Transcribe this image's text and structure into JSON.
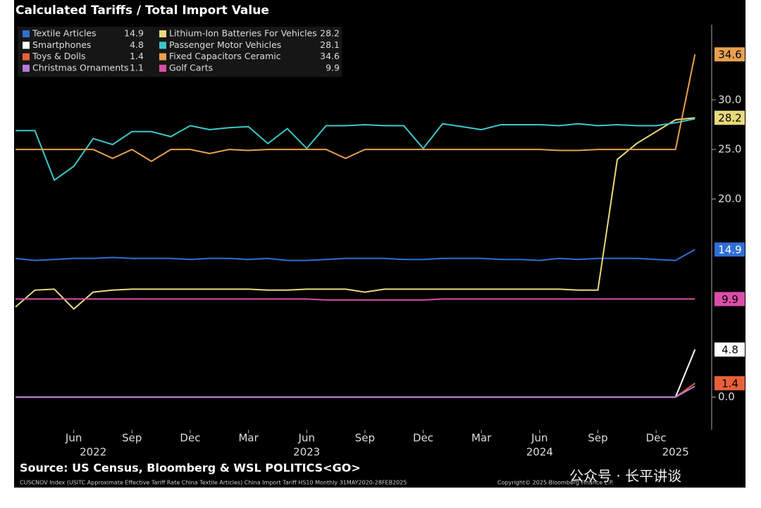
{
  "chart_data": {
    "type": "line",
    "title": "Calculated Tariffs / Total Import Value",
    "source": "Source: US Census, Bloomberg & WSL POLITICS<GO>",
    "footnote": "CUSCNOV Index (USITC Approximate Effective Tariff Rate China Textile Articles) China Import Tariff HS10  Monthly 31MAY2020-28FEB2025",
    "copyright": "Copyright© 2025 Bloomberg Finance L.P.",
    "watermark": "公众号 · 长平讲谈",
    "x": [
      "2022-03",
      "2022-04",
      "2022-05",
      "2022-06",
      "2022-07",
      "2022-08",
      "2022-09",
      "2022-10",
      "2022-11",
      "2022-12",
      "2023-01",
      "2023-02",
      "2023-03",
      "2023-04",
      "2023-05",
      "2023-06",
      "2023-07",
      "2023-08",
      "2023-09",
      "2023-10",
      "2023-11",
      "2023-12",
      "2024-01",
      "2024-02",
      "2024-03",
      "2024-04",
      "2024-05",
      "2024-06",
      "2024-07",
      "2024-08",
      "2024-09",
      "2024-10",
      "2024-11",
      "2024-12",
      "2025-01",
      "2025-02"
    ],
    "xticks": [
      {
        "value": "2022-06",
        "label": "Jun"
      },
      {
        "value": "2022-09",
        "label": "Sep"
      },
      {
        "value": "2022-12",
        "label": "Dec"
      },
      {
        "value": "2023-03",
        "label": "Mar"
      },
      {
        "value": "2023-06",
        "label": "Jun"
      },
      {
        "value": "2023-09",
        "label": "Sep"
      },
      {
        "value": "2023-12",
        "label": "Dec"
      },
      {
        "value": "2024-03",
        "label": "Mar"
      },
      {
        "value": "2024-06",
        "label": "Jun"
      },
      {
        "value": "2024-09",
        "label": "Sep"
      },
      {
        "value": "2024-12",
        "label": "Dec"
      }
    ],
    "xyears": [
      {
        "value": "2022-07",
        "label": "2022"
      },
      {
        "value": "2023-06",
        "label": "2023"
      },
      {
        "value": "2024-06",
        "label": "2024"
      },
      {
        "value": "2025-01",
        "label": "2025"
      }
    ],
    "ylim": [
      -3.3,
      37.6
    ],
    "yticks": [
      {
        "value": 0,
        "label": "0.0"
      },
      {
        "value": 20,
        "label": "20.0"
      },
      {
        "value": 25,
        "label": "25.0"
      },
      {
        "value": 30,
        "label": "30.0"
      }
    ],
    "grid": false,
    "legend": "top-left",
    "series": [
      {
        "name": "Textile Articles",
        "color": "#2f6fd6",
        "end_label": true,
        "values": [
          14.0,
          13.8,
          13.9,
          14.0,
          14.0,
          14.1,
          14.0,
          14.0,
          14.0,
          13.9,
          14.0,
          14.0,
          13.9,
          14.0,
          13.8,
          13.8,
          13.9,
          14.0,
          14.0,
          14.0,
          13.9,
          13.9,
          14.0,
          14.0,
          14.0,
          13.9,
          13.9,
          13.8,
          14.0,
          13.9,
          14.0,
          14.0,
          14.0,
          13.9,
          13.8,
          14.9
        ]
      },
      {
        "name": "Smartphones",
        "color": "#ffffff",
        "end_label": true,
        "values": [
          0,
          0,
          0,
          0,
          0,
          0,
          0,
          0,
          0,
          0,
          0,
          0,
          0,
          0,
          0,
          0,
          0,
          0,
          0,
          0,
          0,
          0,
          0,
          0,
          0,
          0,
          0,
          0,
          0,
          0,
          0,
          0,
          0,
          0,
          0,
          4.8
        ]
      },
      {
        "name": "Toys & Dolls",
        "color": "#e8603c",
        "end_label": true,
        "values": [
          0,
          0,
          0,
          0,
          0,
          0,
          0,
          0,
          0,
          0,
          0,
          0,
          0,
          0,
          0,
          0,
          0,
          0,
          0,
          0,
          0,
          0,
          0,
          0,
          0,
          0,
          0,
          0,
          0,
          0,
          0,
          0,
          0,
          0,
          0,
          1.4
        ]
      },
      {
        "name": "Christmas Ornaments",
        "color": "#b57bd8",
        "end_label": false,
        "values": [
          0,
          0,
          0,
          0,
          0,
          0,
          0,
          0,
          0,
          0,
          0,
          0,
          0,
          0,
          0,
          0,
          0,
          0,
          0,
          0,
          0,
          0,
          0,
          0,
          0,
          0,
          0,
          0,
          0,
          0,
          0,
          0,
          0,
          0,
          0,
          1.1
        ]
      },
      {
        "name": "Lithium-Ion Batteries For Vehicles",
        "color": "#e8d97a",
        "end_label": true,
        "values": [
          9.1,
          10.8,
          10.9,
          8.9,
          10.6,
          10.8,
          10.9,
          10.9,
          10.9,
          10.9,
          10.9,
          10.9,
          10.9,
          10.8,
          10.8,
          10.9,
          10.9,
          10.9,
          10.6,
          10.9,
          10.9,
          10.9,
          10.9,
          10.9,
          10.9,
          10.9,
          10.9,
          10.9,
          10.9,
          10.8,
          10.8,
          24.0,
          25.6,
          26.8,
          28.0,
          28.2
        ]
      },
      {
        "name": "Passenger Motor Vehicles",
        "color": "#3cc8c8",
        "end_label": false,
        "values": [
          26.9,
          26.9,
          21.9,
          23.3,
          26.1,
          25.5,
          26.8,
          26.8,
          26.3,
          27.4,
          27.0,
          27.2,
          27.3,
          25.6,
          27.1,
          25.1,
          27.4,
          27.4,
          27.5,
          27.4,
          27.4,
          25.1,
          27.6,
          27.3,
          27.0,
          27.5,
          27.5,
          27.5,
          27.4,
          27.6,
          27.4,
          27.5,
          27.4,
          27.4,
          27.7,
          28.1
        ]
      },
      {
        "name": "Fixed Capacitors Ceramic",
        "color": "#e8a050",
        "end_label": true,
        "values": [
          25,
          25,
          25,
          25,
          25,
          24.1,
          25,
          23.8,
          25,
          25,
          24.6,
          25,
          24.9,
          25,
          25,
          25,
          25,
          24.1,
          25,
          25,
          25,
          25,
          25,
          25,
          25,
          25,
          25,
          25,
          24.9,
          24.9,
          25,
          25,
          25,
          25,
          25,
          34.6
        ]
      },
      {
        "name": "Golf Carts",
        "color": "#d94fa8",
        "end_label": true,
        "values": [
          9.9,
          9.9,
          9.9,
          9.9,
          9.9,
          9.9,
          9.9,
          9.9,
          9.9,
          9.9,
          9.9,
          9.9,
          9.9,
          9.9,
          9.9,
          9.9,
          9.8,
          9.8,
          9.8,
          9.8,
          9.8,
          9.8,
          9.9,
          9.9,
          9.9,
          9.9,
          9.9,
          9.9,
          9.9,
          9.9,
          9.9,
          9.9,
          9.9,
          9.9,
          9.9,
          9.9
        ]
      }
    ]
  }
}
